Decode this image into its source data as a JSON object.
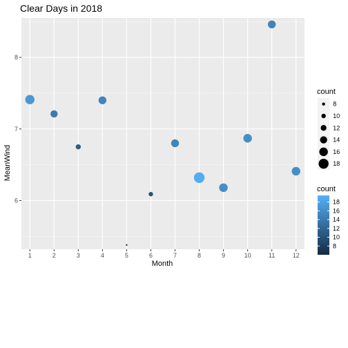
{
  "chart_data": {
    "type": "scatter",
    "title": "Clear Days in 2018",
    "xlabel": "Month",
    "ylabel": "MeanWind",
    "xlim": [
      0.65,
      12.35
    ],
    "ylim": [
      5.32,
      8.55
    ],
    "x_ticks": [
      1,
      2,
      3,
      4,
      5,
      6,
      7,
      8,
      9,
      10,
      11,
      12
    ],
    "x_tick_labels": [
      "1",
      "2",
      "3",
      "4",
      "5",
      "6",
      "7",
      "8",
      "9",
      "10",
      "11",
      "12"
    ],
    "y_ticks": [
      6,
      7,
      8
    ],
    "y_tick_labels": [
      "6",
      "7",
      "8"
    ],
    "grid": true,
    "points": [
      {
        "x": 1,
        "y": 7.41,
        "count": 17
      },
      {
        "x": 2,
        "y": 7.21,
        "count": 14
      },
      {
        "x": 3,
        "y": 6.75,
        "count": 11
      },
      {
        "x": 4,
        "y": 7.4,
        "count": 15
      },
      {
        "x": 5,
        "y": 5.38,
        "count": 6
      },
      {
        "x": 6,
        "y": 6.09,
        "count": 10
      },
      {
        "x": 7,
        "y": 6.8,
        "count": 15
      },
      {
        "x": 8,
        "y": 6.32,
        "count": 19
      },
      {
        "x": 9,
        "y": 6.18,
        "count": 16
      },
      {
        "x": 10,
        "y": 6.87,
        "count": 16
      },
      {
        "x": 11,
        "y": 8.46,
        "count": 15
      },
      {
        "x": 12,
        "y": 6.41,
        "count": 16
      }
    ],
    "legend_size": {
      "title": "count",
      "entries": [
        {
          "value": 8,
          "label": "8"
        },
        {
          "value": 10,
          "label": "10"
        },
        {
          "value": 12,
          "label": "12"
        },
        {
          "value": 14,
          "label": "14"
        },
        {
          "value": 16,
          "label": "16"
        },
        {
          "value": 18,
          "label": "18"
        }
      ]
    },
    "legend_color": {
      "title": "count",
      "range": [
        6,
        19.5
      ],
      "ticks": [
        8,
        10,
        12,
        14,
        16,
        18
      ],
      "tick_labels": [
        "8",
        "10",
        "12",
        "14",
        "16",
        "18"
      ],
      "low_color": "#132b43",
      "high_color": "#56b1f7"
    },
    "legend_placement": "right",
    "colors": {
      "panel_background": "#ebebeb",
      "grid_major": "#ffffff",
      "point_size_legend": "#000000"
    }
  }
}
